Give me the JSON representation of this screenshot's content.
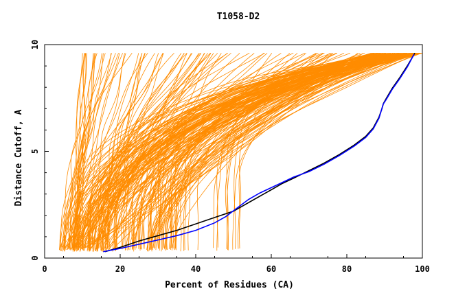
{
  "chart_data": {
    "type": "line",
    "title": "T1058-D2",
    "xlabel": "Percent of Residues (CA)",
    "ylabel": "Distance Cutoff, A",
    "xlim": [
      0,
      100
    ],
    "ylim": [
      0,
      10
    ],
    "x_ticks": [
      "0",
      "20",
      "40",
      "60",
      "80",
      "100"
    ],
    "y_ticks": [
      "0",
      "5",
      "10"
    ],
    "grid": false,
    "legend": "none",
    "colors": {
      "background_models": "#ff8c00",
      "highlight_black": "#000000",
      "highlight_blue": "#0000ff"
    },
    "series": [
      {
        "color": "#000000",
        "x": [
          16,
          20,
          25,
          30,
          35,
          40,
          45,
          50,
          52,
          55,
          58,
          60,
          63,
          66,
          70,
          74,
          78,
          82,
          85,
          87,
          88.5,
          89.3,
          89.7,
          90.5,
          92,
          94,
          96,
          98
        ],
        "y": [
          0.3,
          0.5,
          0.8,
          1.05,
          1.3,
          1.6,
          1.9,
          2.2,
          2.4,
          2.7,
          3.0,
          3.2,
          3.5,
          3.75,
          4.1,
          4.45,
          4.85,
          5.3,
          5.7,
          6.1,
          6.6,
          7.0,
          7.25,
          7.5,
          7.95,
          8.45,
          9.0,
          9.6
        ]
      },
      {
        "color": "#0000ff",
        "x": [
          15.5,
          20,
          25,
          30,
          35,
          40,
          45,
          48,
          51,
          54,
          57,
          60,
          63,
          66,
          70,
          74,
          78,
          82,
          85,
          87,
          88.5,
          89.2,
          89.6,
          90.5,
          92,
          94,
          96,
          97.8
        ],
        "y": [
          0.3,
          0.45,
          0.65,
          0.85,
          1.05,
          1.3,
          1.65,
          1.95,
          2.35,
          2.75,
          3.05,
          3.3,
          3.55,
          3.8,
          4.05,
          4.4,
          4.8,
          5.25,
          5.65,
          6.05,
          6.55,
          6.95,
          7.2,
          7.45,
          7.9,
          8.4,
          8.95,
          9.55
        ]
      }
    ]
  }
}
